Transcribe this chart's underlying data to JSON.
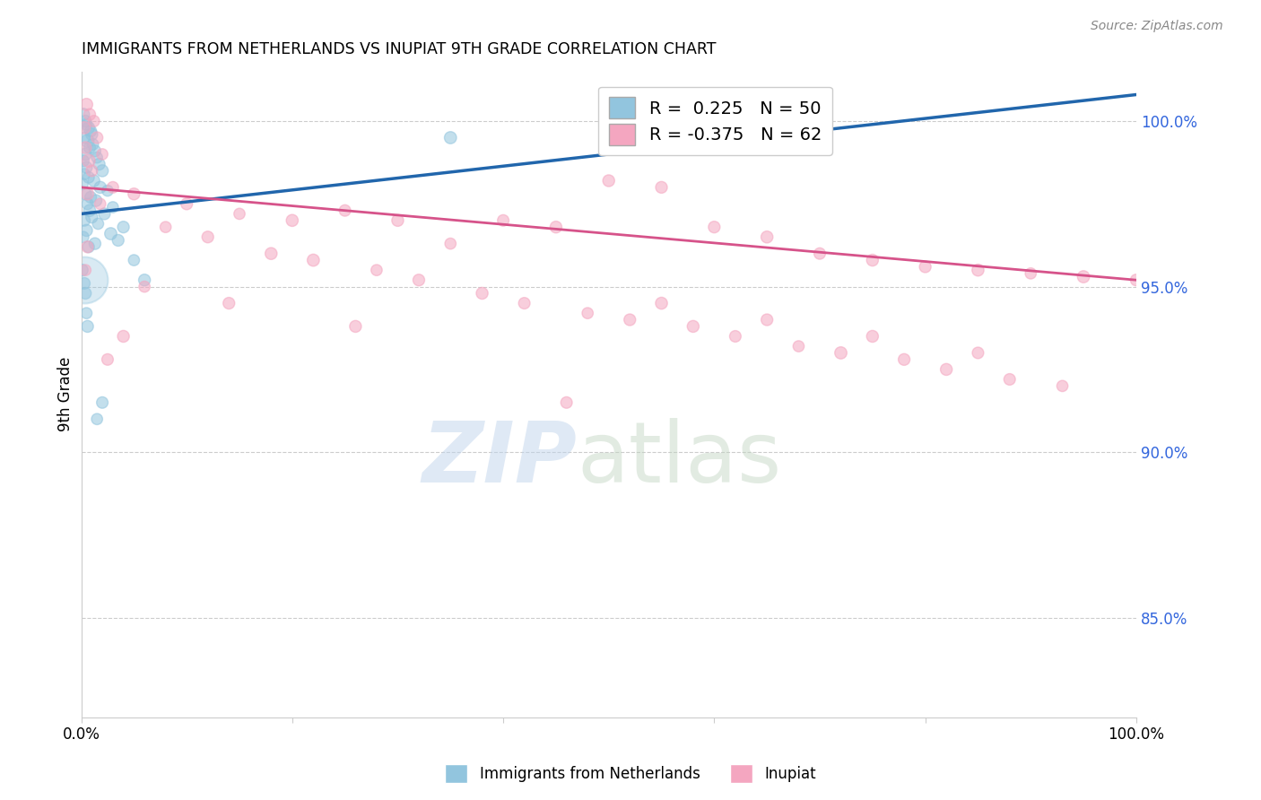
{
  "title": "IMMIGRANTS FROM NETHERLANDS VS INUPIAT 9TH GRADE CORRELATION CHART",
  "source": "Source: ZipAtlas.com",
  "ylabel": "9th Grade",
  "r_blue": 0.225,
  "n_blue": 50,
  "r_pink": -0.375,
  "n_pink": 62,
  "legend_labels": [
    "Immigrants from Netherlands",
    "Inupiat"
  ],
  "right_yticks": [
    85.0,
    90.0,
    95.0,
    100.0
  ],
  "right_ytick_labels": [
    "85.0%",
    "90.0%",
    "95.0%",
    "100.0%"
  ],
  "blue_color": "#92c5de",
  "pink_color": "#f4a6c0",
  "blue_line_color": "#2166ac",
  "pink_line_color": "#d6538a",
  "ylim_bottom": 82.0,
  "ylim_top": 101.5,
  "xlim_left": 0,
  "xlim_right": 100,
  "blue_line_y0": 97.2,
  "blue_line_y1": 100.8,
  "pink_line_y0": 98.0,
  "pink_line_y1": 95.2,
  "blue_points": [
    [
      0.2,
      100.2
    ],
    [
      0.4,
      100.0
    ],
    [
      0.5,
      99.9
    ],
    [
      0.7,
      99.8
    ],
    [
      0.9,
      99.7
    ],
    [
      1.0,
      99.6
    ],
    [
      0.3,
      99.5
    ],
    [
      0.6,
      99.4
    ],
    [
      1.1,
      99.3
    ],
    [
      0.8,
      99.2
    ],
    [
      1.3,
      99.1
    ],
    [
      0.4,
      99.0
    ],
    [
      1.5,
      98.9
    ],
    [
      0.2,
      98.8
    ],
    [
      1.7,
      98.7
    ],
    [
      0.5,
      98.6
    ],
    [
      2.0,
      98.5
    ],
    [
      0.3,
      98.4
    ],
    [
      0.7,
      98.3
    ],
    [
      1.2,
      98.2
    ],
    [
      0.1,
      98.1
    ],
    [
      1.8,
      98.0
    ],
    [
      2.5,
      97.9
    ],
    [
      0.4,
      97.8
    ],
    [
      0.9,
      97.7
    ],
    [
      1.4,
      97.6
    ],
    [
      0.6,
      97.5
    ],
    [
      3.0,
      97.4
    ],
    [
      0.8,
      97.3
    ],
    [
      2.2,
      97.2
    ],
    [
      1.0,
      97.1
    ],
    [
      0.3,
      97.0
    ],
    [
      1.6,
      96.9
    ],
    [
      4.0,
      96.8
    ],
    [
      0.5,
      96.7
    ],
    [
      2.8,
      96.6
    ],
    [
      0.2,
      96.5
    ],
    [
      3.5,
      96.4
    ],
    [
      1.3,
      96.3
    ],
    [
      0.7,
      96.2
    ],
    [
      5.0,
      95.8
    ],
    [
      0.1,
      95.5
    ],
    [
      6.0,
      95.2
    ],
    [
      2.0,
      91.5
    ],
    [
      1.5,
      91.0
    ],
    [
      35.0,
      99.5
    ],
    [
      0.4,
      94.8
    ],
    [
      0.6,
      93.8
    ],
    [
      0.3,
      95.1
    ],
    [
      0.5,
      94.2
    ]
  ],
  "blue_sizes": [
    100,
    90,
    85,
    95,
    88,
    92,
    80,
    110,
    85,
    90,
    88,
    95,
    80,
    85,
    90,
    88,
    92,
    80,
    85,
    90,
    88,
    92,
    80,
    95,
    88,
    90,
    85,
    80,
    92,
    88,
    90,
    85,
    80,
    88,
    92,
    95,
    80,
    88,
    90,
    85,
    80,
    88,
    90,
    85,
    80,
    95,
    88,
    90,
    85,
    80
  ],
  "large_blue_x": 0.3,
  "large_blue_y": 95.2,
  "large_blue_size": 1400,
  "pink_points": [
    [
      0.5,
      100.5
    ],
    [
      0.8,
      100.2
    ],
    [
      1.2,
      100.0
    ],
    [
      0.3,
      99.8
    ],
    [
      1.5,
      99.5
    ],
    [
      0.4,
      99.2
    ],
    [
      2.0,
      99.0
    ],
    [
      0.7,
      98.8
    ],
    [
      1.0,
      98.5
    ],
    [
      50.0,
      98.2
    ],
    [
      55.0,
      98.0
    ],
    [
      0.6,
      97.8
    ],
    [
      1.8,
      97.5
    ],
    [
      25.0,
      97.3
    ],
    [
      30.0,
      97.0
    ],
    [
      60.0,
      96.8
    ],
    [
      65.0,
      96.5
    ],
    [
      35.0,
      96.3
    ],
    [
      70.0,
      96.0
    ],
    [
      75.0,
      95.8
    ],
    [
      80.0,
      95.6
    ],
    [
      85.0,
      95.5
    ],
    [
      90.0,
      95.4
    ],
    [
      95.0,
      95.3
    ],
    [
      100.0,
      95.2
    ],
    [
      45.0,
      96.8
    ],
    [
      40.0,
      97.0
    ],
    [
      15.0,
      97.2
    ],
    [
      20.0,
      97.0
    ],
    [
      10.0,
      97.5
    ],
    [
      5.0,
      97.8
    ],
    [
      3.0,
      98.0
    ],
    [
      8.0,
      96.8
    ],
    [
      12.0,
      96.5
    ],
    [
      18.0,
      96.0
    ],
    [
      22.0,
      95.8
    ],
    [
      28.0,
      95.5
    ],
    [
      32.0,
      95.2
    ],
    [
      38.0,
      94.8
    ],
    [
      42.0,
      94.5
    ],
    [
      48.0,
      94.2
    ],
    [
      52.0,
      94.0
    ],
    [
      58.0,
      93.8
    ],
    [
      62.0,
      93.5
    ],
    [
      68.0,
      93.2
    ],
    [
      72.0,
      93.0
    ],
    [
      78.0,
      92.8
    ],
    [
      82.0,
      92.5
    ],
    [
      88.0,
      92.2
    ],
    [
      93.0,
      92.0
    ],
    [
      55.0,
      94.5
    ],
    [
      65.0,
      94.0
    ],
    [
      75.0,
      93.5
    ],
    [
      85.0,
      93.0
    ],
    [
      6.0,
      95.0
    ],
    [
      14.0,
      94.5
    ],
    [
      26.0,
      93.8
    ],
    [
      46.0,
      91.5
    ],
    [
      0.4,
      95.5
    ],
    [
      0.6,
      96.2
    ],
    [
      4.0,
      93.5
    ],
    [
      2.5,
      92.8
    ]
  ],
  "pink_sizes": [
    100,
    90,
    85,
    95,
    88,
    92,
    80,
    110,
    85,
    90,
    88,
    95,
    80,
    85,
    90,
    88,
    92,
    80,
    85,
    90,
    88,
    92,
    80,
    95,
    88,
    90,
    85,
    80,
    92,
    88,
    90,
    85,
    80,
    88,
    92,
    95,
    80,
    88,
    90,
    85,
    80,
    88,
    90,
    85,
    80,
    95,
    88,
    90,
    85,
    80,
    92,
    88,
    90,
    85,
    80,
    88,
    90,
    85,
    80,
    88,
    90,
    85
  ]
}
